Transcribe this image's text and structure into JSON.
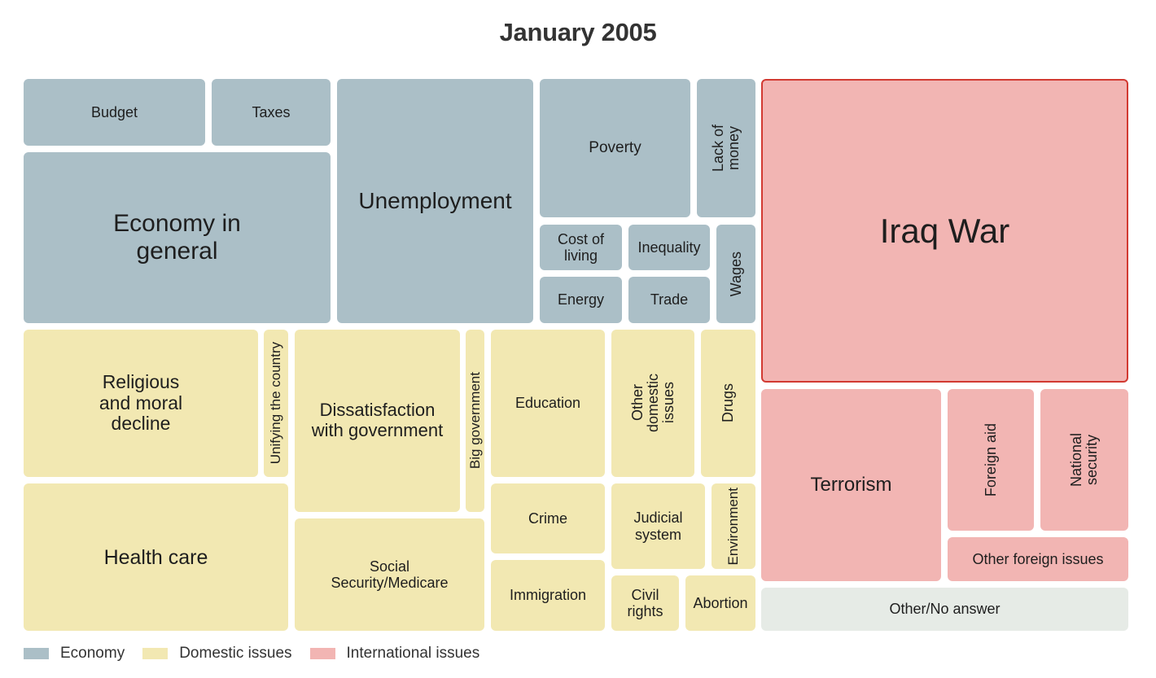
{
  "chart_data": {
    "type": "treemap",
    "title": "January 2005",
    "colors": {
      "Economy": "#abbfc7",
      "Domestic issues": "#f2e8b2",
      "International issues": "#f2b5b3",
      "Other": "#e6ebe6"
    },
    "legend": {
      "placement": "bottom-left",
      "entries": [
        {
          "name": "Economy",
          "color": "#abbfc7"
        },
        {
          "name": "Domestic issues",
          "color": "#f2e8b2"
        },
        {
          "name": "International issues",
          "color": "#f2b5b3"
        }
      ]
    },
    "highlighted": "Iraq War",
    "tiles": [
      {
        "label": "Budget",
        "category": "Economy"
      },
      {
        "label": "Taxes",
        "category": "Economy"
      },
      {
        "label": "Economy in general",
        "category": "Economy"
      },
      {
        "label": "Unemployment",
        "category": "Economy"
      },
      {
        "label": "Poverty",
        "category": "Economy"
      },
      {
        "label": "Lack of money",
        "category": "Economy"
      },
      {
        "label": "Cost of living",
        "category": "Economy"
      },
      {
        "label": "Inequality",
        "category": "Economy"
      },
      {
        "label": "Energy",
        "category": "Economy"
      },
      {
        "label": "Trade",
        "category": "Economy"
      },
      {
        "label": "Wages",
        "category": "Economy"
      },
      {
        "label": "Religious and moral decline",
        "category": "Domestic issues"
      },
      {
        "label": "Unifying the country",
        "category": "Domestic issues"
      },
      {
        "label": "Dissatisfaction with government",
        "category": "Domestic issues"
      },
      {
        "label": "Big government",
        "category": "Domestic issues"
      },
      {
        "label": "Education",
        "category": "Domestic issues"
      },
      {
        "label": "Other domestic issues",
        "category": "Domestic issues"
      },
      {
        "label": "Drugs",
        "category": "Domestic issues"
      },
      {
        "label": "Health care",
        "category": "Domestic issues"
      },
      {
        "label": "Social Security/Medicare",
        "category": "Domestic issues"
      },
      {
        "label": "Crime",
        "category": "Domestic issues"
      },
      {
        "label": "Judicial system",
        "category": "Domestic issues"
      },
      {
        "label": "Environment",
        "category": "Domestic issues"
      },
      {
        "label": "Immigration",
        "category": "Domestic issues"
      },
      {
        "label": "Civil rights",
        "category": "Domestic issues"
      },
      {
        "label": "Abortion",
        "category": "Domestic issues"
      },
      {
        "label": "Iraq War",
        "category": "International issues"
      },
      {
        "label": "Terrorism",
        "category": "International issues"
      },
      {
        "label": "Foreign aid",
        "category": "International issues"
      },
      {
        "label": "National security",
        "category": "International issues"
      },
      {
        "label": "Other foreign issues",
        "category": "International issues"
      },
      {
        "label": "Other/No answer",
        "category": "Other"
      }
    ]
  }
}
